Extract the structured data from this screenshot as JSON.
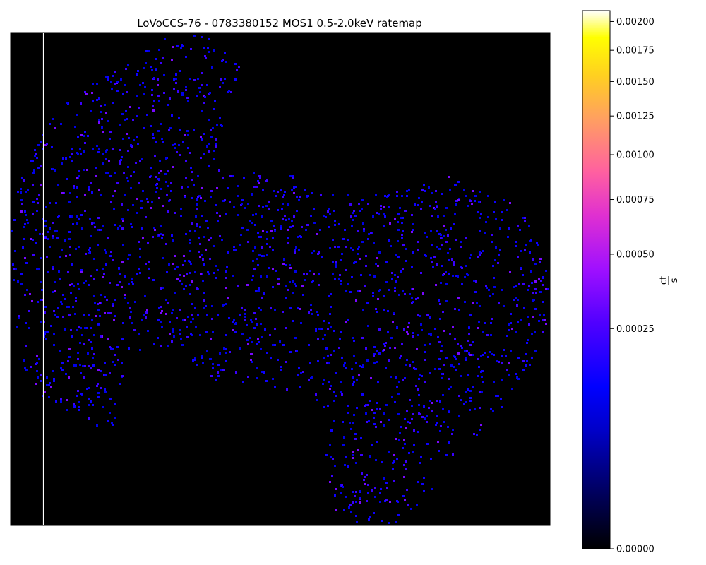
{
  "chart_data": {
    "type": "heatmap",
    "title": "LoVoCCS-76 - 0783380152 MOS1 0.5-2.0keV ratemap",
    "xlabel": "",
    "ylabel": "",
    "grid": false,
    "background_color": "#000000",
    "colormap": "gnuplot2",
    "colorbar": {
      "label_numerator": "ct",
      "label_denominator": "s",
      "scale": "power-law (sqrt-like)",
      "range": [
        0.0,
        0.0021
      ],
      "ticks": [
        0.0,
        0.00025,
        0.0005,
        0.00075,
        0.001,
        0.00125,
        0.0015,
        0.00175,
        0.002
      ],
      "tick_labels": [
        "0.00000",
        "0.00025",
        "0.00050",
        "0.00075",
        "0.00100",
        "0.00125",
        "0.00150",
        "0.00175",
        "0.00200"
      ]
    },
    "pixel_value_levels": [
      9e-05,
      0.00014,
      0.00022,
      0.00035
    ],
    "pixel_level_weights": [
      0.35,
      0.35,
      0.22,
      0.08
    ],
    "data_shape": "sparse single-photon count pixels scattered over the MOS1 detector footprint; footprint is empty outside two lobes joined by a central band",
    "visible_defect": "vertical white column line near left edge"
  },
  "colors": {
    "background": "#000000",
    "column_line": "#ffffff"
  }
}
